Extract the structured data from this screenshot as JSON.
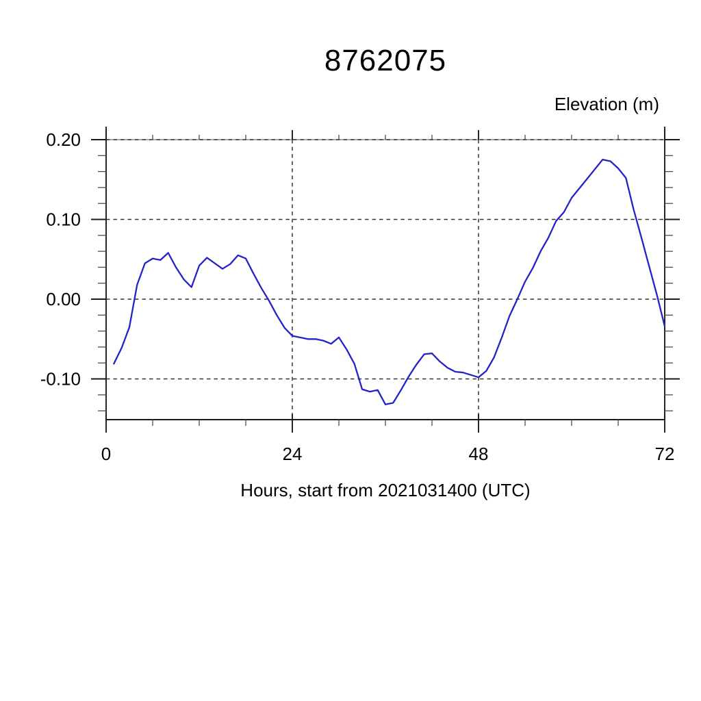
{
  "title": "8762075",
  "y_axis_label": "Elevation (m)",
  "x_axis_label": "Hours, start from 2021031400 (UTC)",
  "chart_data": {
    "type": "line",
    "title": "8762075",
    "ylabel": "Elevation (m)",
    "xlabel": "Hours, start from 2021031400 (UTC)",
    "line_color": "#2222cc",
    "grid": "dashed-at-major-ticks",
    "legend": "none",
    "xlim": [
      0,
      72
    ],
    "ylim": [
      -0.151,
      0.217
    ],
    "x_ticks": [
      {
        "v": 0,
        "label": "0"
      },
      {
        "v": 24,
        "label": "24"
      },
      {
        "v": 48,
        "label": "48"
      },
      {
        "v": 72,
        "label": "72"
      }
    ],
    "x_minor_step": 6,
    "x_gridlines": [
      24,
      48
    ],
    "y_ticks": [
      {
        "v": 0.2,
        "label": "0.20"
      },
      {
        "v": 0.1,
        "label": "0.10"
      },
      {
        "v": 0.0,
        "label": "0.00"
      },
      {
        "v": -0.1,
        "label": "-0.10"
      }
    ],
    "y_minor_step": 0.02,
    "y_minor_range": [
      -0.14,
      0.18
    ],
    "x": [
      1,
      2,
      3,
      4,
      5,
      6,
      7,
      8,
      9,
      10,
      11,
      12,
      13,
      14,
      15,
      16,
      17,
      18,
      19,
      20,
      21,
      22,
      23,
      24,
      25,
      26,
      27,
      28,
      29,
      30,
      31,
      32,
      33,
      34,
      35,
      36,
      37,
      38,
      39,
      40,
      41,
      42,
      43,
      44,
      45,
      46,
      47,
      48,
      49,
      50,
      51,
      52,
      53,
      54,
      55,
      56,
      57,
      58,
      59,
      60,
      61,
      62,
      63,
      64,
      65,
      66,
      67,
      68,
      69,
      70,
      71,
      72
    ],
    "values": [
      -0.081,
      -0.061,
      -0.035,
      0.018,
      0.045,
      0.051,
      0.049,
      0.058,
      0.04,
      0.025,
      0.015,
      0.042,
      0.052,
      0.045,
      0.038,
      0.044,
      0.055,
      0.051,
      0.032,
      0.014,
      -0.002,
      -0.02,
      -0.036,
      -0.046,
      -0.048,
      -0.05,
      -0.05,
      -0.052,
      -0.056,
      -0.048,
      -0.063,
      -0.081,
      -0.113,
      -0.116,
      -0.114,
      -0.132,
      -0.13,
      -0.114,
      -0.097,
      -0.082,
      -0.069,
      -0.068,
      -0.078,
      -0.086,
      -0.091,
      -0.092,
      -0.095,
      -0.098,
      -0.09,
      -0.073,
      -0.048,
      -0.021,
      0.0,
      0.022,
      0.039,
      0.06,
      0.077,
      0.098,
      0.109,
      0.127,
      0.139,
      0.151,
      0.163,
      0.175,
      0.173,
      0.164,
      0.152,
      0.112,
      0.077,
      0.041,
      0.005,
      -0.034
    ]
  }
}
